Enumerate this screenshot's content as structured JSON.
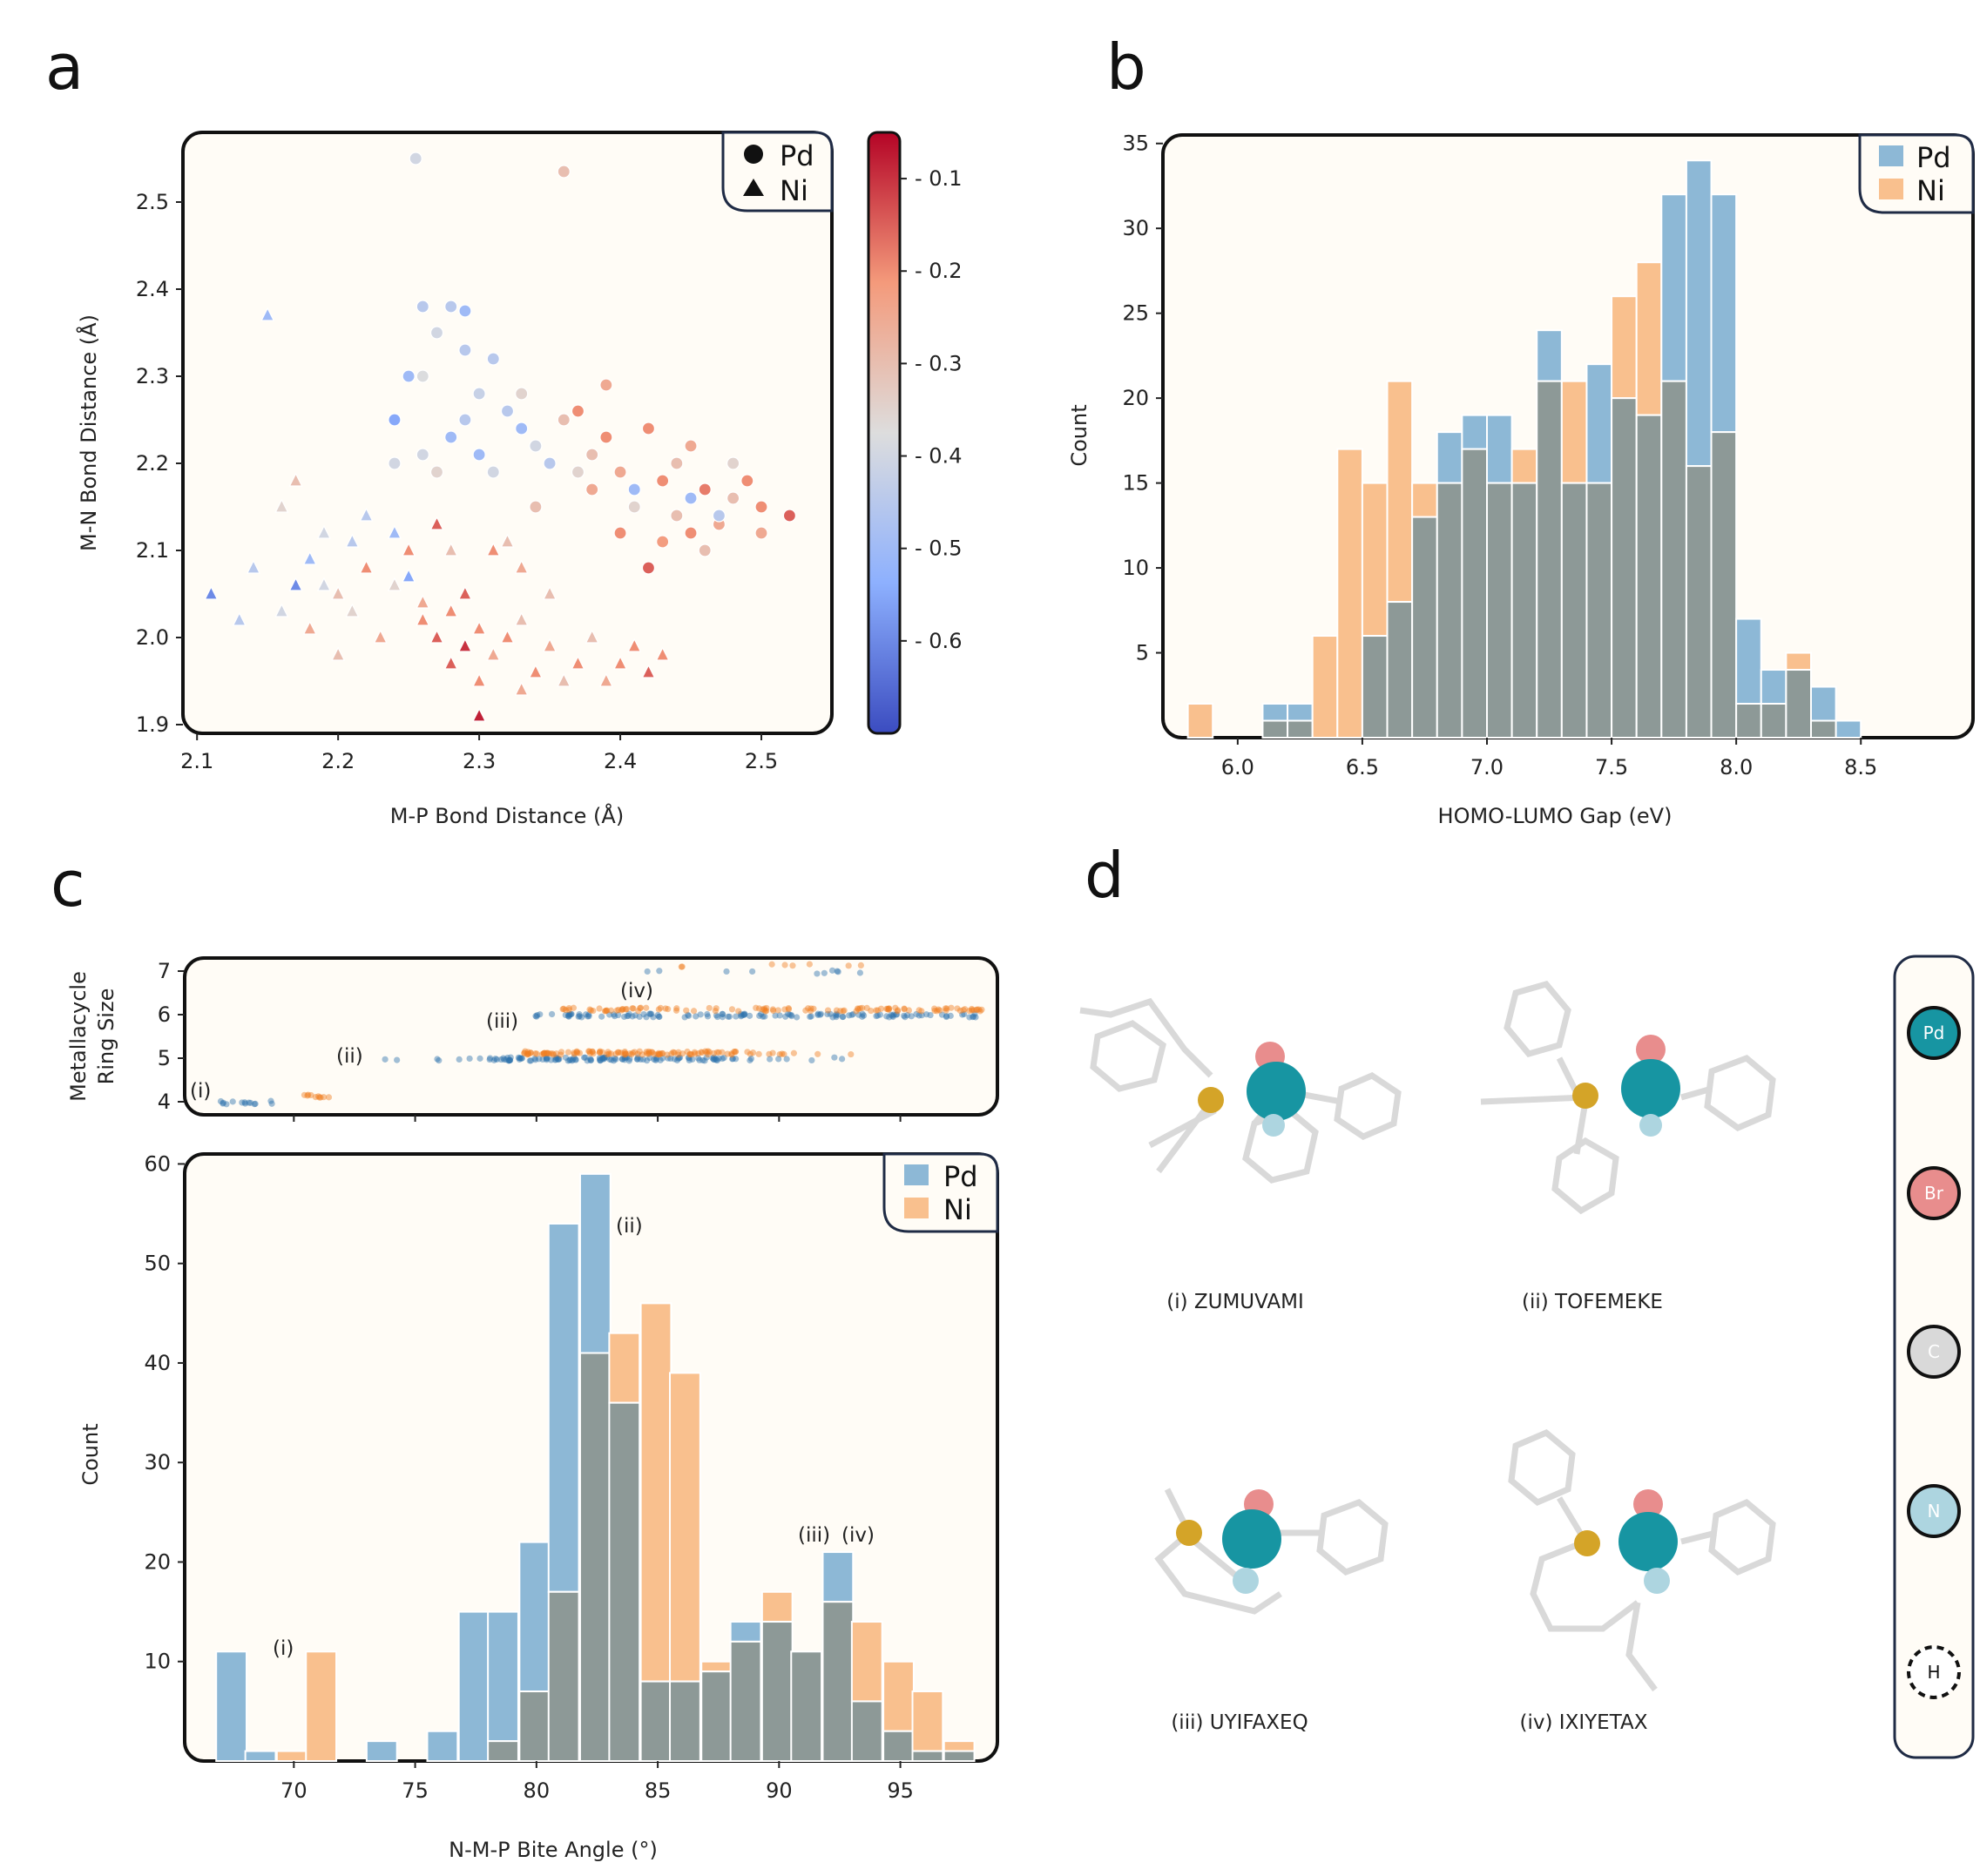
{
  "panels": {
    "a": "a",
    "b": "b",
    "c": "c",
    "d": "d"
  },
  "colors": {
    "pd": "#8db8d6",
    "ni": "#f9c08e",
    "overlap": "#8d9997",
    "pd_dot": "#2f74ad",
    "ni_dot": "#f07f21",
    "bg": "#fffcf6",
    "box": "#1f2b45",
    "cmap_low": "#3b4cc0",
    "cmap_mid": "#dddddd",
    "cmap_high": "#b40426"
  },
  "chart_data": [
    {
      "id": "a",
      "type": "scatter",
      "xlabel": "M-P Bond Distance (Å)",
      "ylabel": "M-N Bond Distance (Å)",
      "xlim": [
        2.09,
        2.55
      ],
      "ylim": [
        1.89,
        2.58
      ],
      "xticks": [
        "2.1",
        "2.2",
        "2.3",
        "2.4",
        "2.5"
      ],
      "yticks": [
        "1.9",
        "2.0",
        "2.1",
        "2.2",
        "2.3",
        "2.4",
        "2.5"
      ],
      "legend": [
        "Pd",
        "Ni"
      ],
      "legend_position": "top-right",
      "colorbar": {
        "range": [
          -0.7,
          -0.05
        ],
        "ticks": [
          "- 0.1",
          "- 0.2",
          "- 0.3",
          "- 0.4",
          "- 0.5",
          "- 0.6"
        ]
      },
      "series": [
        {
          "name": "Pd",
          "marker": "circle",
          "points": [
            [
              2.255,
              2.55,
              -0.4
            ],
            [
              2.36,
              2.535,
              -0.3
            ],
            [
              2.26,
              2.38,
              -0.45
            ],
            [
              2.28,
              2.38,
              -0.45
            ],
            [
              2.29,
              2.375,
              -0.5
            ],
            [
              2.27,
              2.35,
              -0.4
            ],
            [
              2.31,
              2.32,
              -0.45
            ],
            [
              2.25,
              2.3,
              -0.5
            ],
            [
              2.3,
              2.28,
              -0.42
            ],
            [
              2.33,
              2.28,
              -0.35
            ],
            [
              2.37,
              2.26,
              -0.2
            ],
            [
              2.39,
              2.29,
              -0.25
            ],
            [
              2.42,
              2.24,
              -0.2
            ],
            [
              2.45,
              2.22,
              -0.25
            ],
            [
              2.24,
              2.25,
              -0.55
            ],
            [
              2.29,
              2.25,
              -0.45
            ],
            [
              2.33,
              2.24,
              -0.5
            ],
            [
              2.26,
              2.21,
              -0.4
            ],
            [
              2.3,
              2.21,
              -0.5
            ],
            [
              2.35,
              2.2,
              -0.45
            ],
            [
              2.38,
              2.21,
              -0.3
            ],
            [
              2.4,
              2.19,
              -0.25
            ],
            [
              2.43,
              2.18,
              -0.2
            ],
            [
              2.46,
              2.17,
              -0.18
            ],
            [
              2.49,
              2.18,
              -0.2
            ],
            [
              2.5,
              2.15,
              -0.2
            ],
            [
              2.52,
              2.14,
              -0.15
            ],
            [
              2.38,
              2.17,
              -0.25
            ],
            [
              2.41,
              2.15,
              -0.35
            ],
            [
              2.44,
              2.14,
              -0.3
            ],
            [
              2.47,
              2.13,
              -0.25
            ],
            [
              2.4,
              2.12,
              -0.2
            ],
            [
              2.43,
              2.11,
              -0.22
            ],
            [
              2.46,
              2.1,
              -0.3
            ],
            [
              2.42,
              2.08,
              -0.15
            ],
            [
              2.47,
              2.14,
              -0.45
            ],
            [
              2.34,
              2.15,
              -0.3
            ],
            [
              2.31,
              2.19,
              -0.4
            ],
            [
              2.27,
              2.19,
              -0.35
            ],
            [
              2.45,
              2.16,
              -0.5
            ],
            [
              2.36,
              2.25,
              -0.3
            ],
            [
              2.24,
              2.2,
              -0.4
            ],
            [
              2.48,
              2.2,
              -0.35
            ],
            [
              2.5,
              2.12,
              -0.25
            ],
            [
              2.28,
              2.23,
              -0.5
            ],
            [
              2.32,
              2.26,
              -0.45
            ],
            [
              2.34,
              2.22,
              -0.4
            ],
            [
              2.39,
              2.23,
              -0.2
            ],
            [
              2.44,
              2.2,
              -0.3
            ],
            [
              2.41,
              2.17,
              -0.5
            ],
            [
              2.37,
              2.19,
              -0.35
            ],
            [
              2.45,
              2.12,
              -0.2
            ],
            [
              2.48,
              2.16,
              -0.3
            ],
            [
              2.29,
              2.33,
              -0.45
            ],
            [
              2.26,
              2.3,
              -0.38
            ]
          ]
        },
        {
          "name": "Ni",
          "marker": "triangle",
          "points": [
            [
              2.15,
              2.37,
              -0.5
            ],
            [
              2.11,
              2.05,
              -0.6
            ],
            [
              2.13,
              2.02,
              -0.45
            ],
            [
              2.16,
              2.03,
              -0.4
            ],
            [
              2.17,
              2.06,
              -0.6
            ],
            [
              2.18,
              2.09,
              -0.5
            ],
            [
              2.2,
              2.05,
              -0.3
            ],
            [
              2.21,
              2.11,
              -0.45
            ],
            [
              2.22,
              2.08,
              -0.2
            ],
            [
              2.24,
              2.06,
              -0.35
            ],
            [
              2.25,
              2.1,
              -0.2
            ],
            [
              2.26,
              2.04,
              -0.25
            ],
            [
              2.27,
              2.0,
              -0.15
            ],
            [
              2.28,
              2.03,
              -0.2
            ],
            [
              2.29,
              1.99,
              -0.1
            ],
            [
              2.3,
              2.01,
              -0.2
            ],
            [
              2.31,
              1.98,
              -0.25
            ],
            [
              2.32,
              2.0,
              -0.2
            ],
            [
              2.33,
              2.02,
              -0.3
            ],
            [
              2.34,
              1.96,
              -0.2
            ],
            [
              2.35,
              1.99,
              -0.25
            ],
            [
              2.37,
              1.97,
              -0.2
            ],
            [
              2.38,
              2.0,
              -0.3
            ],
            [
              2.4,
              1.97,
              -0.2
            ],
            [
              2.42,
              1.96,
              -0.15
            ],
            [
              2.41,
              1.99,
              -0.2
            ],
            [
              2.3,
              1.91,
              -0.08
            ],
            [
              2.19,
              2.12,
              -0.4
            ],
            [
              2.16,
              2.15,
              -0.35
            ],
            [
              2.17,
              2.18,
              -0.3
            ],
            [
              2.22,
              2.14,
              -0.45
            ],
            [
              2.24,
              2.12,
              -0.5
            ],
            [
              2.23,
              2.0,
              -0.25
            ],
            [
              2.26,
              2.02,
              -0.2
            ],
            [
              2.18,
              2.01,
              -0.25
            ],
            [
              2.2,
              1.98,
              -0.3
            ],
            [
              2.28,
              1.97,
              -0.15
            ],
            [
              2.3,
              1.95,
              -0.2
            ],
            [
              2.33,
              1.94,
              -0.25
            ],
            [
              2.36,
              1.95,
              -0.3
            ],
            [
              2.27,
              2.13,
              -0.15
            ],
            [
              2.31,
              2.1,
              -0.2
            ],
            [
              2.33,
              2.08,
              -0.25
            ],
            [
              2.29,
              2.05,
              -0.15
            ],
            [
              2.25,
              2.07,
              -0.55
            ],
            [
              2.21,
              2.03,
              -0.35
            ],
            [
              2.19,
              2.06,
              -0.4
            ],
            [
              2.14,
              2.08,
              -0.45
            ],
            [
              2.35,
              2.05,
              -0.3
            ],
            [
              2.32,
              2.11,
              -0.3
            ],
            [
              2.39,
              1.95,
              -0.25
            ],
            [
              2.43,
              1.98,
              -0.2
            ],
            [
              2.28,
              2.1,
              -0.3
            ]
          ]
        }
      ]
    },
    {
      "id": "b",
      "type": "bar",
      "xlabel": "HOMO-LUMO Gap (eV)",
      "ylabel": "Count",
      "xlim": [
        5.7,
        8.95
      ],
      "ylim": [
        0,
        35.5
      ],
      "xticks": [
        "6.0",
        "6.5",
        "7.0",
        "7.5",
        "8.0",
        "8.5"
      ],
      "yticks": [
        "5",
        "10",
        "15",
        "20",
        "25",
        "30",
        "35"
      ],
      "legend": [
        "Pd",
        "Ni"
      ],
      "legend_position": "top-right",
      "bin_starts": [
        5.8,
        5.9,
        6.0,
        6.1,
        6.2,
        6.3,
        6.4,
        6.5,
        6.6,
        6.7,
        6.8,
        6.9,
        7.0,
        7.1,
        7.2,
        7.3,
        7.4,
        7.5,
        7.6,
        7.7,
        7.8,
        7.9,
        8.0,
        8.1,
        8.2,
        8.3,
        8.4,
        8.5,
        8.6,
        8.7
      ],
      "bin_width": 0.1,
      "series": [
        {
          "name": "Pd",
          "values": [
            0,
            0,
            0,
            2,
            2,
            0,
            0,
            6,
            8,
            13,
            18,
            19,
            19,
            15,
            24,
            15,
            22,
            20,
            19,
            32,
            34,
            32,
            7,
            4,
            4,
            3,
            1,
            0,
            0,
            0
          ]
        },
        {
          "name": "Ni",
          "values": [
            2,
            0,
            0,
            1,
            1,
            6,
            17,
            15,
            21,
            15,
            15,
            17,
            15,
            17,
            21,
            21,
            15,
            26,
            28,
            21,
            16,
            18,
            2,
            2,
            5,
            1,
            0,
            0,
            0,
            0
          ]
        }
      ]
    },
    {
      "id": "c-top",
      "type": "scatter",
      "ylabel": "Metallacycle Ring Size",
      "yticks": [
        "7",
        "6",
        "5",
        "4"
      ],
      "ylim": [
        3.7,
        7.3
      ],
      "annotations": [
        "(i)",
        "(ii)",
        "(iii)",
        "(iv)"
      ]
    },
    {
      "id": "c",
      "type": "bar",
      "xlabel": "N-M-P Bite Angle (°)",
      "ylabel": "Count",
      "xlim": [
        65.5,
        99.0
      ],
      "ylim": [
        0,
        61
      ],
      "xticks": [
        "70",
        "75",
        "80",
        "85",
        "90",
        "95"
      ],
      "yticks": [
        "10",
        "20",
        "30",
        "40",
        "50",
        "60"
      ],
      "legend": [
        "Pd",
        "Ni"
      ],
      "legend_position": "top-right",
      "annotations": [
        "(i)",
        "(ii)",
        "(iii)",
        "(iv)"
      ],
      "bin_starts": [
        66.8,
        68.0,
        69.3,
        70.5,
        71.8,
        73.0,
        74.3,
        75.5,
        76.8,
        78.0,
        79.3,
        80.5,
        81.8,
        83.0,
        84.3,
        85.5,
        86.8,
        88.0,
        89.3,
        90.5,
        91.8,
        93.0,
        94.3,
        95.5,
        96.8
      ],
      "bin_width": 1.25,
      "series": [
        {
          "name": "Pd",
          "values": [
            11,
            1,
            0,
            0,
            0,
            2,
            0,
            3,
            15,
            15,
            22,
            54,
            59,
            36,
            8,
            8,
            9,
            14,
            14,
            11,
            21,
            6,
            3,
            1,
            1
          ]
        },
        {
          "name": "Ni",
          "values": [
            0,
            0,
            1,
            11,
            0,
            0,
            0,
            0,
            0,
            2,
            7,
            17,
            41,
            43,
            46,
            39,
            10,
            12,
            17,
            11,
            16,
            14,
            10,
            7,
            2
          ]
        }
      ]
    }
  ],
  "panel_d": {
    "molecules": [
      "(i) ZUMUVAMI",
      "(ii) TOFEMEKE",
      "(iii) UYIFAXEQ",
      "(iv) IXIYETAX"
    ],
    "elements": [
      "Pd",
      "Br",
      "C",
      "N",
      "H"
    ]
  }
}
